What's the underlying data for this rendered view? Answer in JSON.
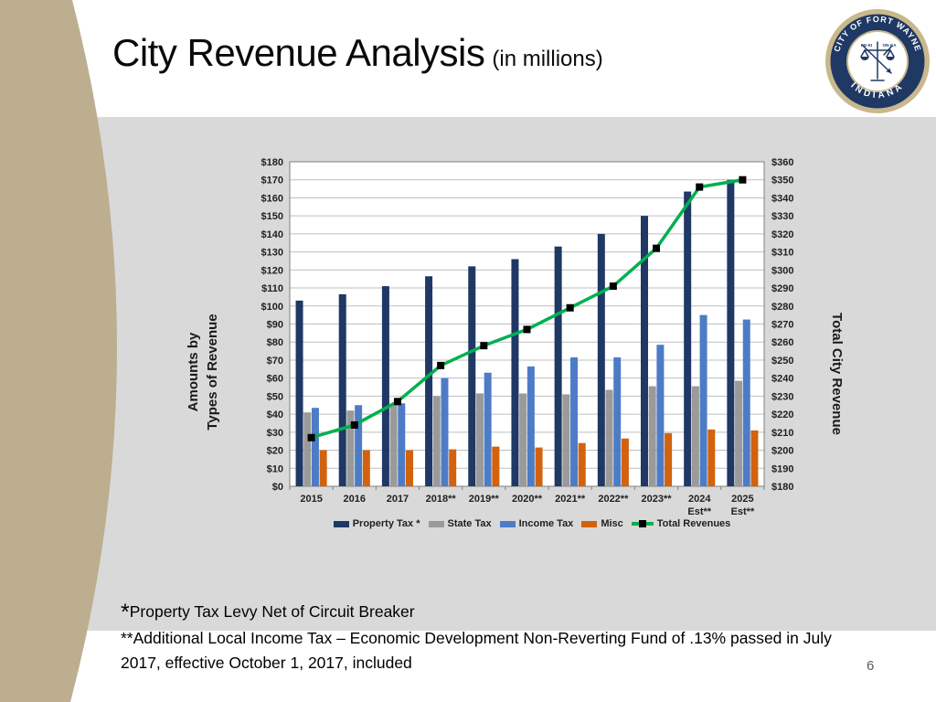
{
  "slide": {
    "title": "City Revenue Analysis",
    "title_suffix": "(in millions)",
    "footnote1_star": "*",
    "footnote1_text": "Property Tax Levy Net of Circuit Breaker",
    "footnote2_text": "**Additional Local Income Tax – Economic Development Non-Reverting Fund of .13% passed in July 2017, effective October 1, 2017, included",
    "page_number": "6"
  },
  "seal": {
    "top_text": "CITY OF FORT WAYNE",
    "bottom_text": "INDIANA",
    "inner_left": "KE-KI",
    "inner_right": "ON-GA"
  },
  "colors": {
    "accent_tan": "#BCAE8F",
    "band_gray": "#D9D9D9",
    "seal_navy": "#1F3864",
    "seal_gold": "#C8B88C"
  },
  "chart_data": {
    "type": "bar",
    "subtype": "grouped bars with overlaid line on secondary axis",
    "categories": [
      "2015",
      "2016",
      "2017",
      "2018**",
      "2019**",
      "2020**",
      "2021**",
      "2022**",
      "2023**",
      "2024",
      "2025"
    ],
    "category_sublabels": [
      "",
      "",
      "",
      "",
      "",
      "",
      "",
      "",
      "",
      "Est**",
      "Est**"
    ],
    "bar_series": [
      {
        "name": "Property Tax *",
        "color": "#1F3864",
        "axis": "left",
        "values": [
          103,
          106.5,
          111,
          116.5,
          122,
          126,
          133,
          140,
          150,
          163.5,
          170
        ]
      },
      {
        "name": "State Tax",
        "color": "#9A9A9A",
        "axis": "left",
        "values": [
          41,
          42,
          45,
          50,
          51.5,
          51.5,
          51,
          53.5,
          55.5,
          55.5,
          58.5
        ]
      },
      {
        "name": "Income Tax",
        "color": "#4D7CC7",
        "axis": "left",
        "values": [
          43.5,
          45,
          46,
          60,
          63,
          66.5,
          71.5,
          71.5,
          78.5,
          95,
          92.5
        ]
      },
      {
        "name": "Misc",
        "color": "#D2620E",
        "axis": "left",
        "values": [
          20,
          20,
          20,
          20.5,
          22,
          21.5,
          24,
          26.5,
          29.5,
          31.5,
          31
        ]
      }
    ],
    "line_series": {
      "name": "Total Revenues",
      "color": "#00B050",
      "marker": "black-square",
      "axis": "right",
      "values": [
        207,
        214,
        227,
        247,
        258,
        267,
        279,
        291,
        312,
        346,
        350
      ]
    },
    "left_axis": {
      "title_line1": "Amounts by",
      "title_line2": "Types of Revenue",
      "min": 0,
      "max": 180,
      "step": 10,
      "tick_prefix": "$"
    },
    "right_axis": {
      "title": "Total City Revenue",
      "min": 180,
      "max": 360,
      "step": 10,
      "tick_prefix": "$"
    },
    "plot": {
      "background": "#FFFFFF",
      "gridline_color": "#BFBFBF",
      "border_color": "#808080",
      "outer_background": "#D9D9D9",
      "grid": "horizontal"
    }
  }
}
